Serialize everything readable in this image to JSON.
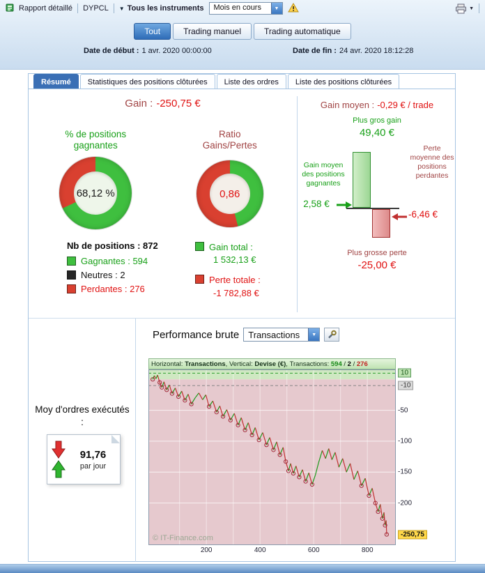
{
  "icons": {
    "dropdown_arrow": "▼"
  },
  "toolbar": {
    "report_label": "Rapport détaillé",
    "account_label": "DYPCL",
    "instruments_label": "Tous les instruments",
    "period_value": "Mois en cours"
  },
  "mode_tabs": [
    "Tout",
    "Trading manuel",
    "Trading automatique"
  ],
  "dates": {
    "start_label": "Date de début :",
    "start_value": "1 avr. 2020 00:00:00",
    "end_label": "Date de fin :",
    "end_value": "24 avr. 2020 18:12:28"
  },
  "tabs": [
    "Résumé",
    "Statistiques des positions clôturées",
    "Liste des ordres",
    "Liste des positions clôturées"
  ],
  "summary": {
    "gain_label": "Gain :",
    "gain_value": "-250,75 €",
    "winrate_title": "% de positions gagnantes",
    "winrate_value": "68,12 %",
    "winrate_green_pct": 68.12,
    "ratio_title": "Ratio Gains/Pertes",
    "ratio_value": "0,86",
    "ratio_green_pct": 46.2,
    "positions_label": "Nb de positions : 872",
    "legend": [
      {
        "label": "Gagnantes : 594"
      },
      {
        "label": "Neutres : 2"
      },
      {
        "label": "Perdantes : 276"
      }
    ],
    "gain_total_label": "Gain total :",
    "gain_total_value": "1 532,13 €",
    "loss_total_label": "Perte totale :",
    "loss_total_value": "-1 782,88 €"
  },
  "average": {
    "title_label": "Gain moyen :",
    "title_value": "-0,29 € / trade",
    "max_gain_label": "Plus gros gain",
    "max_gain_value": "49,40 €",
    "avg_gain_label": "Gain moyen des positions gagnantes",
    "avg_gain_value": "2,58 €",
    "avg_loss_label": "Perte moyenne des positions perdantes",
    "avg_loss_value": "-6,46 €",
    "max_loss_label": "Plus grosse perte",
    "max_loss_value": "-25,00 €"
  },
  "performance": {
    "title": "Performance brute",
    "series_select_value": "Transactions",
    "avg_orders_label": "Moy d'ordres exécutés :",
    "avg_orders_value": "91,76",
    "avg_orders_unit": "par jour",
    "strip": {
      "h_label": "Horizontal: ",
      "h_value": "Transactions",
      "comma": ", ",
      "v_label": "Vertical: ",
      "v_value": "Devise (€)",
      "t_label": "Transactions: ",
      "wins": "594",
      "slash": " / ",
      "neutral": "2",
      "losses": "276"
    },
    "watermark": "© IT-Finance.com",
    "last_value_label": "-250,75"
  },
  "colors": {
    "green": "#18a018",
    "greenfill": "#3fbf3f",
    "red": "#e01212",
    "redfill": "#d94030",
    "maroon": "#a04343",
    "blue": "#3a6fb5",
    "chart_green_bg": "#cfe8c2",
    "chart_pink_bg": "#e6c9ce",
    "line_green": "#1a9a1a",
    "line_red": "#c03030",
    "tag_yellow": "#ffd84a"
  },
  "chart_data": {
    "type": "line",
    "title": "Performance brute",
    "xlabel": "Transactions",
    "ylabel": "Devise (€)",
    "grid": true,
    "xlim": [
      -16,
      906
    ],
    "ylim": [
      -268,
      16
    ],
    "xticks": [
      200,
      400,
      600,
      800
    ],
    "yticks": [
      10,
      -10,
      -50,
      -100,
      -150,
      -200
    ],
    "counts": {
      "wins": 594,
      "neutral": 2,
      "losses": 276
    },
    "last_value": -250.75,
    "x": [
      0,
      6,
      12,
      18,
      26,
      34,
      42,
      52,
      62,
      72,
      84,
      96,
      108,
      120,
      132,
      144,
      158,
      172,
      186,
      198,
      210,
      224,
      238,
      250,
      262,
      276,
      290,
      304,
      318,
      330,
      344,
      356,
      370,
      382,
      396,
      410,
      424,
      436,
      450,
      462,
      474,
      486,
      496,
      506,
      514,
      524,
      534,
      546,
      558,
      570,
      582,
      594,
      606,
      618,
      632,
      644,
      656,
      668,
      680,
      694,
      708,
      722,
      736,
      750,
      764,
      778,
      792,
      806,
      818,
      830,
      840,
      848,
      856,
      862,
      866,
      870,
      872
    ],
    "y": [
      0,
      6,
      1,
      7,
      -5,
      -13,
      -4,
      -17,
      -9,
      -23,
      -14,
      -28,
      -19,
      -34,
      -24,
      -40,
      -30,
      -22,
      -33,
      -25,
      -44,
      -35,
      -53,
      -43,
      -60,
      -49,
      -66,
      -55,
      -74,
      -62,
      -82,
      -70,
      -90,
      -78,
      -98,
      -86,
      -106,
      -94,
      -114,
      -101,
      -122,
      -110,
      -133,
      -148,
      -136,
      -152,
      -140,
      -158,
      -146,
      -165,
      -151,
      -170,
      -155,
      -135,
      -115,
      -128,
      -112,
      -130,
      -118,
      -142,
      -128,
      -150,
      -136,
      -162,
      -148,
      -172,
      -160,
      -188,
      -176,
      -200,
      -214,
      -202,
      -225,
      -215,
      -236,
      -228,
      -250.75
    ]
  }
}
